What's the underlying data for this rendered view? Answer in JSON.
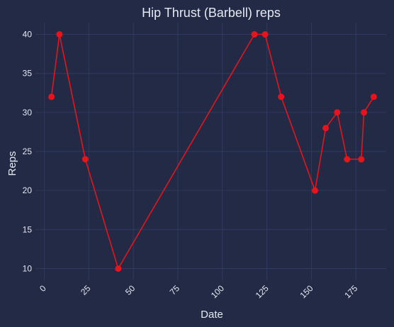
{
  "chart_data": {
    "type": "line",
    "title": "Hip Thrust (Barbell) reps",
    "xlabel": "Date",
    "ylabel": "Reps",
    "xlim": [
      -5,
      192
    ],
    "ylim": [
      8.5,
      41.5
    ],
    "x_ticks": [
      0,
      25,
      50,
      75,
      100,
      125,
      150,
      175
    ],
    "y_ticks": [
      10,
      15,
      20,
      25,
      30,
      35,
      40
    ],
    "grid": true,
    "series": [
      {
        "color": "#e8141c",
        "x": [
          4,
          8.5,
          23,
          41.5,
          118,
          124,
          133,
          152,
          158,
          164.5,
          170,
          178,
          179.5,
          185
        ],
        "y": [
          32,
          40,
          24,
          10,
          40,
          40,
          32,
          20,
          28,
          30,
          24,
          24,
          30,
          32
        ]
      }
    ],
    "colors": {
      "background": "#222a45",
      "grid": "#2e3a5e",
      "text": "#e6e9f2",
      "line": "#e8141c"
    }
  }
}
